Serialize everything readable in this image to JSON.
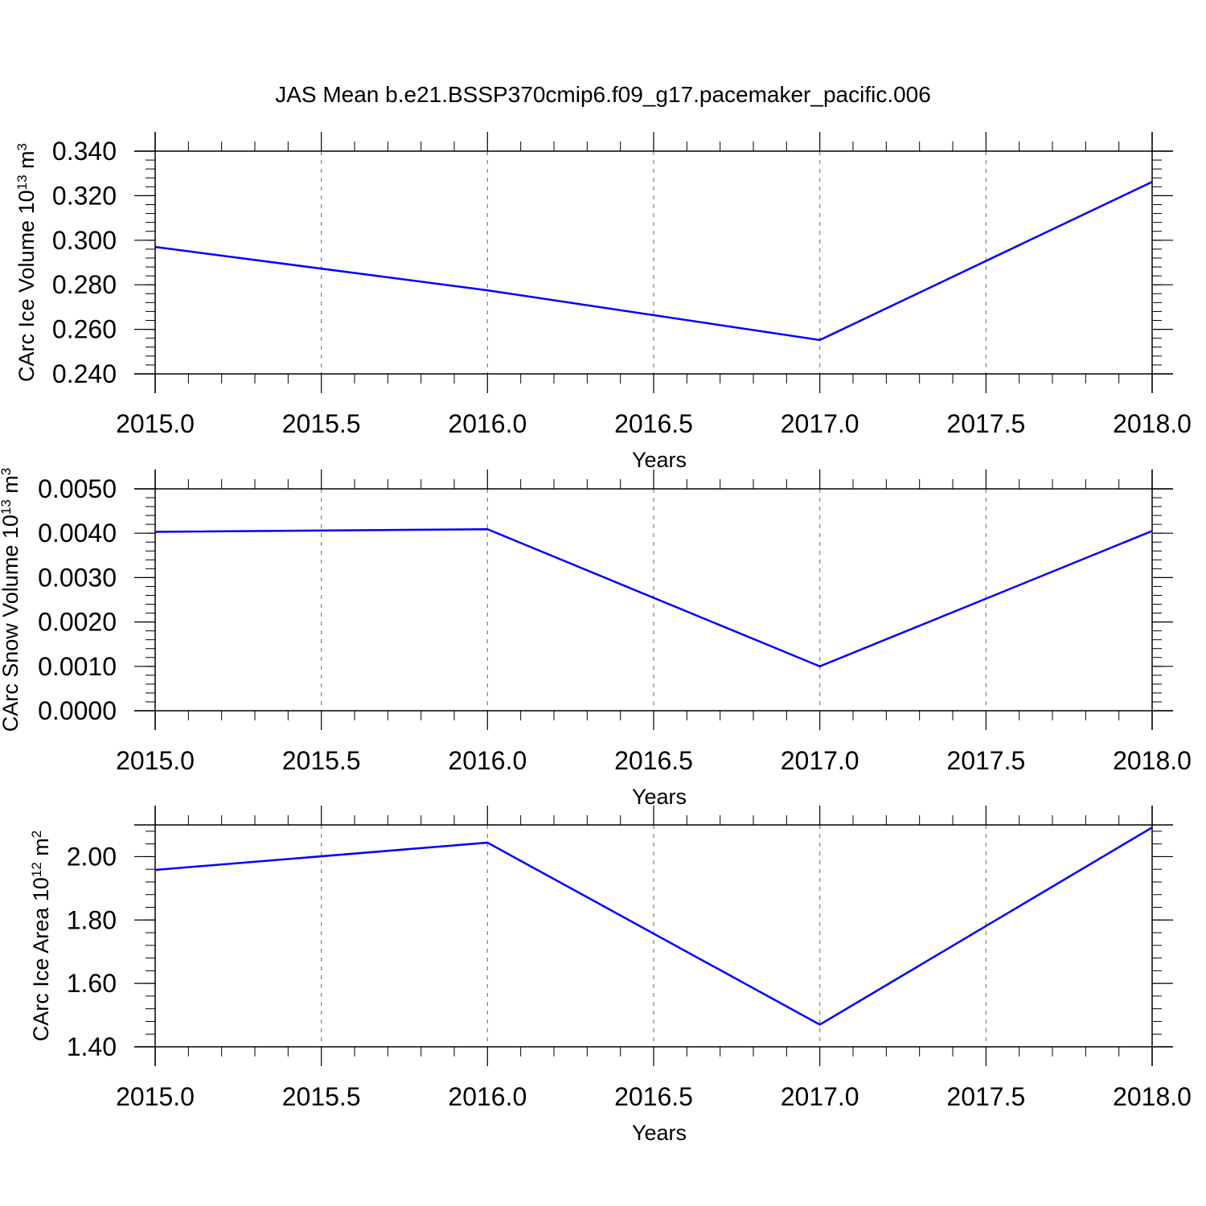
{
  "title": "JAS Mean b.e21.BSSP370cmip6.f09_g17.pacemaker_pacific.006",
  "colors": {
    "line": "#0000ff",
    "axes": "#000000",
    "grid": "#808080"
  },
  "chart_data": [
    {
      "type": "line",
      "x": [
        2015,
        2016,
        2017,
        2018
      ],
      "values": [
        0.297,
        0.2775,
        0.2552,
        0.3262
      ],
      "xlabel": "Years",
      "ylabel": "CArc Ice Volume 10",
      "ylabel_sup": "13",
      "ylabel_unit": " m",
      "ylabel_unit_sup": "3",
      "xlim": [
        2015,
        2018
      ],
      "ylim": [
        0.24,
        0.34
      ],
      "xticks": [
        2015.0,
        2015.5,
        2016.0,
        2016.5,
        2017.0,
        2017.5,
        2018.0
      ],
      "xtick_labels": [
        "2015.0",
        "2015.5",
        "2016.0",
        "2016.5",
        "2017.0",
        "2017.5",
        "2018.0"
      ],
      "yticks": [
        0.24,
        0.26,
        0.28,
        0.3,
        0.32,
        0.34
      ],
      "ytick_labels": [
        "0.240",
        "0.260",
        "0.280",
        "0.300",
        "0.320",
        "0.340"
      ],
      "grid": "vertical dashed"
    },
    {
      "type": "line",
      "x": [
        2015,
        2016,
        2017,
        2018
      ],
      "values": [
        0.00403,
        0.00409,
        0.001,
        0.00405
      ],
      "xlabel": "Years",
      "ylabel": "CArc Snow Volume 10",
      "ylabel_sup": "13",
      "ylabel_unit": " m",
      "ylabel_unit_sup": "3",
      "xlim": [
        2015,
        2018
      ],
      "ylim": [
        0.0,
        0.005
      ],
      "xticks": [
        2015.0,
        2015.5,
        2016.0,
        2016.5,
        2017.0,
        2017.5,
        2018.0
      ],
      "xtick_labels": [
        "2015.0",
        "2015.5",
        "2016.0",
        "2016.5",
        "2017.0",
        "2017.5",
        "2018.0"
      ],
      "yticks": [
        0.0,
        0.001,
        0.002,
        0.003,
        0.004,
        0.005
      ],
      "ytick_labels": [
        "0.0000",
        "0.0010",
        "0.0020",
        "0.0030",
        "0.0040",
        "0.0050"
      ],
      "grid": "vertical dashed"
    },
    {
      "type": "line",
      "x": [
        2015,
        2016,
        2017,
        2018
      ],
      "values": [
        1.958,
        2.044,
        1.47,
        2.092
      ],
      "xlabel": "Years",
      "ylabel": "CArc Ice Area 10",
      "ylabel_sup": "12",
      "ylabel_unit": " m",
      "ylabel_unit_sup": "2",
      "xlim": [
        2015,
        2018
      ],
      "ylim": [
        1.4,
        2.1
      ],
      "xticks": [
        2015.0,
        2015.5,
        2016.0,
        2016.5,
        2017.0,
        2017.5,
        2018.0
      ],
      "xtick_labels": [
        "2015.0",
        "2015.5",
        "2016.0",
        "2016.5",
        "2017.0",
        "2017.5",
        "2018.0"
      ],
      "yticks": [
        1.4,
        1.6,
        1.8,
        2.0
      ],
      "ytick_labels": [
        "1.40",
        "1.60",
        "1.80",
        "2.00"
      ],
      "grid": "vertical dashed"
    }
  ]
}
